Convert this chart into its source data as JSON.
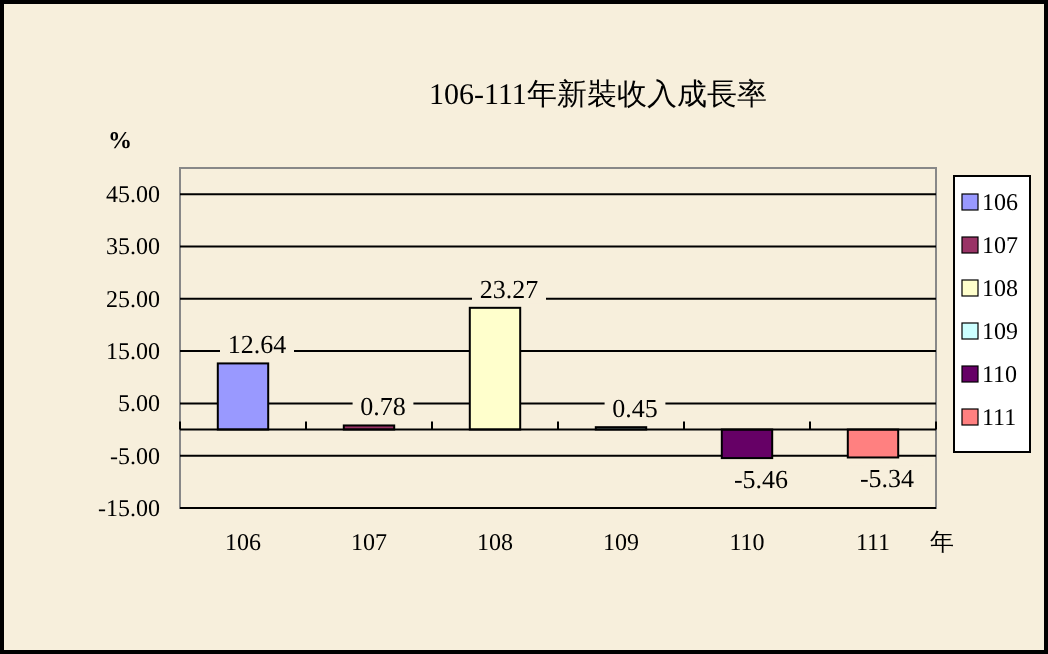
{
  "chart_data": {
    "type": "bar",
    "title": "106-111年新裝收入成長率",
    "ylabel": "%",
    "xlabel": "年",
    "categories": [
      "106",
      "107",
      "108",
      "109",
      "110",
      "111"
    ],
    "series": [
      {
        "name": "106",
        "color": "#9999ff",
        "values": [
          12.64,
          null,
          null,
          null,
          null,
          null
        ]
      },
      {
        "name": "107",
        "color": "#993366",
        "values": [
          null,
          0.78,
          null,
          null,
          null,
          null
        ]
      },
      {
        "name": "108",
        "color": "#ffffcc",
        "values": [
          null,
          null,
          23.27,
          null,
          null,
          null
        ]
      },
      {
        "name": "109",
        "color": "#ccffff",
        "values": [
          null,
          null,
          null,
          0.45,
          null,
          null
        ]
      },
      {
        "name": "110",
        "color": "#660066",
        "values": [
          null,
          null,
          null,
          null,
          -5.46,
          null
        ]
      },
      {
        "name": "111",
        "color": "#ff8080",
        "values": [
          null,
          null,
          null,
          null,
          null,
          -5.34
        ]
      }
    ],
    "data_labels": true,
    "ylim": [
      -15,
      50
    ],
    "yticks": [
      {
        "value": 45,
        "label": "45.00"
      },
      {
        "value": 35,
        "label": "35.00"
      },
      {
        "value": 25,
        "label": "25.00"
      },
      {
        "value": 15,
        "label": "15.00"
      },
      {
        "value": 5,
        "label": "5.00"
      },
      {
        "value": -5,
        "label": "-5.00"
      },
      {
        "value": -15,
        "label": "-15.00"
      }
    ],
    "grid": "y",
    "legend": "right"
  }
}
